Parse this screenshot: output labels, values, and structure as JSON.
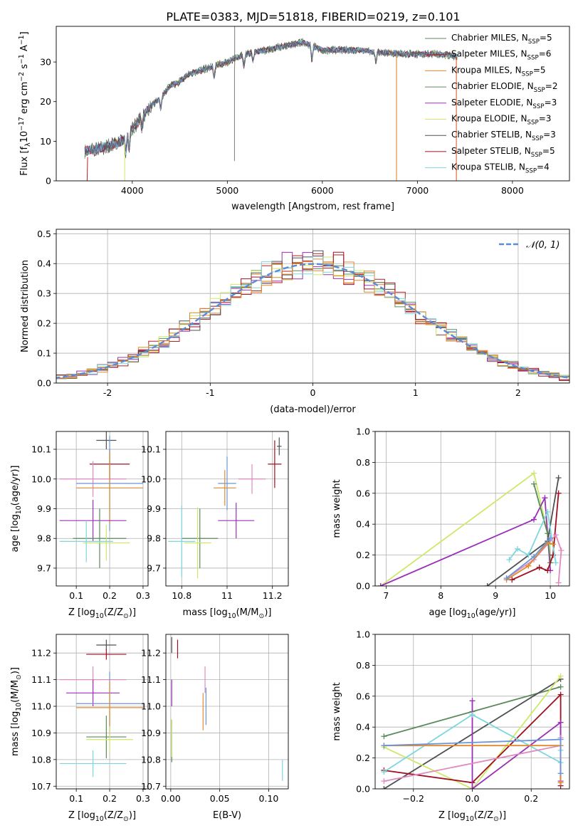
{
  "title": "PLATE=0383, MJD=51818, FIBERID=0219, z=0.101",
  "colors": [
    "#5b5b5b",
    "#b22222",
    "#e08a2c",
    "#5c8a5c",
    "#9b30b8",
    "#cde86a",
    "#505050",
    "#a01020",
    "#7dd6de",
    "#6b95d8",
    "#e08ac0"
  ],
  "chart_data": [
    {
      "type": "line",
      "name": "spectrum",
      "xlabel": "wavelength [Angstrom, rest frame]",
      "ylabel": "Flux [f_λ10^-17 erg cm^-2 s^-1 A^-1]",
      "xlim": [
        3200,
        8600
      ],
      "ylim": [
        0,
        39
      ],
      "xticks": [
        4000,
        5000,
        6000,
        7000,
        8000
      ],
      "yticks": [
        0,
        10,
        20,
        30
      ],
      "legend": "upper right",
      "legend_entries": [
        {
          "label": "Chabrier MILES, N_SSP=5",
          "color": "#5c8a5c"
        },
        {
          "label": "Salpeter MILES, N_SSP=6",
          "color": "#b22222"
        },
        {
          "label": "Kroupa MILES, N_SSP=5",
          "color": "#e08a2c"
        },
        {
          "label": "Chabrier ELODIE, N_SSP=2",
          "color": "#5c8a5c"
        },
        {
          "label": "Salpeter ELODIE, N_SSP=3",
          "color": "#9b30b8"
        },
        {
          "label": "Kroupa ELODIE, N_SSP=3",
          "color": "#cde86a"
        },
        {
          "label": "Chabrier STELIB, N_SSP=3",
          "color": "#505050"
        },
        {
          "label": "Salpeter STELIB, N_SSP=5",
          "color": "#a01020"
        },
        {
          "label": "Kroupa STELIB, N_SSP=4",
          "color": "#7dd6de"
        }
      ],
      "continuum": [
        [
          3500,
          7.5
        ],
        [
          3700,
          8.5
        ],
        [
          3900,
          10
        ],
        [
          4000,
          13
        ],
        [
          4100,
          16
        ],
        [
          4200,
          19
        ],
        [
          4300,
          21
        ],
        [
          4400,
          24
        ],
        [
          4500,
          25
        ],
        [
          4600,
          27
        ],
        [
          4800,
          28.5
        ],
        [
          5000,
          30
        ],
        [
          5200,
          32
        ],
        [
          5400,
          33
        ],
        [
          5600,
          34
        ],
        [
          5800,
          35
        ],
        [
          5900,
          34
        ],
        [
          6000,
          33
        ],
        [
          6200,
          33
        ],
        [
          6400,
          33
        ],
        [
          6600,
          32.5
        ],
        [
          6800,
          32
        ],
        [
          7000,
          32
        ],
        [
          7200,
          32
        ],
        [
          7400,
          31.5
        ]
      ],
      "spikes": [
        [
          5070,
          0
        ],
        [
          5080,
          39
        ],
        [
          3920,
          0
        ],
        [
          6780,
          0
        ],
        [
          7410,
          0
        ]
      ]
    },
    {
      "type": "area",
      "name": "residual-histogram",
      "xlabel": "(data-model)/error",
      "ylabel": "Normed distribution",
      "xlim": [
        -2.5,
        2.5
      ],
      "ylim": [
        0,
        0.515
      ],
      "xticks": [
        -2,
        -1,
        0,
        1,
        2
      ],
      "yticks": [
        0.0,
        0.1,
        0.2,
        0.3,
        0.4,
        0.5
      ],
      "legend": "upper right",
      "legend_label": "N(0,1)",
      "normal_color": "#5b8ad6",
      "bin_width": 0.1
    },
    {
      "type": "scatter",
      "name": "age-vs-Z",
      "xlabel": "Z [log10(Z/Z☉)]",
      "ylabel": "age [log10(age/yr)]",
      "xlim": [
        0.04,
        0.315
      ],
      "ylim": [
        9.64,
        10.16
      ],
      "xticks": [
        0.1,
        0.2,
        0.3
      ],
      "yticks": [
        9.7,
        9.8,
        9.9,
        10.0,
        10.1
      ],
      "points": [
        {
          "x": 0.19,
          "xerr": 0.03,
          "y": 10.13,
          "yerr": 0.03,
          "color": "#505050"
        },
        {
          "x": 0.2,
          "xerr": 0.06,
          "y": 10.05,
          "yerr": 0.05,
          "color": "#a01020"
        },
        {
          "x": 0.15,
          "xerr": 0.1,
          "y": 10.0,
          "yerr": 0.06,
          "color": "#e08ac0"
        },
        {
          "x": 0.2,
          "xerr": 0.1,
          "y": 9.985,
          "yerr": 0.16,
          "color": "#6b95d8"
        },
        {
          "x": 0.2,
          "xerr": 0.1,
          "y": 9.97,
          "yerr": 0.12,
          "color": "#e08a2c"
        },
        {
          "x": 0.15,
          "xerr": 0.1,
          "y": 9.86,
          "yerr": 0.07,
          "color": "#9b30b8"
        },
        {
          "x": 0.17,
          "xerr": 0.08,
          "y": 9.8,
          "yerr": 0.1,
          "color": "#5c8a5c"
        },
        {
          "x": 0.19,
          "xerr": 0.07,
          "y": 9.785,
          "yerr": 0.06,
          "color": "#cde86a"
        },
        {
          "x": 0.13,
          "xerr": 0.08,
          "y": 9.79,
          "yerr": 0.07,
          "color": "#7dd6de"
        }
      ]
    },
    {
      "type": "scatter",
      "name": "age-vs-mass",
      "xlabel": "mass [log10(M/M☉)]",
      "ylabel": "",
      "xlim": [
        10.73,
        11.27
      ],
      "ylim": [
        9.64,
        10.16
      ],
      "xticks": [
        10.8,
        11.0,
        11.2
      ],
      "yticks": [
        9.7,
        9.8,
        9.9,
        10.0,
        10.1
      ],
      "points": [
        {
          "x": 11.23,
          "xerr": 0.01,
          "y": 10.11,
          "yerr": 0.03,
          "color": "#505050"
        },
        {
          "x": 11.21,
          "xerr": 0.03,
          "y": 10.05,
          "yerr": 0.08,
          "color": "#a01020"
        },
        {
          "x": 11.11,
          "xerr": 0.06,
          "y": 10.0,
          "yerr": 0.05,
          "color": "#e08ac0"
        },
        {
          "x": 11.0,
          "xerr": 0.04,
          "y": 9.985,
          "yerr": 0.09,
          "color": "#6b95d8"
        },
        {
          "x": 10.99,
          "xerr": 0.05,
          "y": 9.97,
          "yerr": 0.06,
          "color": "#e08a2c"
        },
        {
          "x": 11.04,
          "xerr": 0.08,
          "y": 9.86,
          "yerr": 0.06,
          "color": "#9b30b8"
        },
        {
          "x": 10.88,
          "xerr": 0.08,
          "y": 9.8,
          "yerr": 0.1,
          "color": "#5c8a5c"
        },
        {
          "x": 10.87,
          "xerr": 0.06,
          "y": 9.785,
          "yerr": 0.12,
          "color": "#cde86a"
        },
        {
          "x": 10.8,
          "xerr": 0.06,
          "y": 9.79,
          "yerr": 0.12,
          "color": "#7dd6de"
        }
      ]
    },
    {
      "type": "line",
      "name": "mass-weight-vs-age",
      "xlabel": "age [log10(age/yr)]",
      "ylabel": "mass weight",
      "xlim": [
        6.8,
        10.35
      ],
      "ylim": [
        0,
        1
      ],
      "xticks": [
        7,
        8,
        9,
        10
      ],
      "yticks": [
        0.0,
        0.2,
        0.4,
        0.6,
        0.8,
        1.0
      ],
      "series": [
        {
          "color": "#cde86a",
          "points": [
            [
              6.9,
              0.0
            ],
            [
              9.7,
              0.73
            ],
            [
              10.0,
              0.27
            ]
          ]
        },
        {
          "color": "#9b30b8",
          "points": [
            [
              6.9,
              0.0
            ],
            [
              9.7,
              0.43
            ],
            [
              9.9,
              0.57
            ],
            [
              10.0,
              0.1
            ]
          ]
        },
        {
          "color": "#5c8a5c",
          "points": [
            [
              9.7,
              0.66
            ],
            [
              9.95,
              0.34
            ],
            [
              10.0,
              0.15
            ]
          ]
        },
        {
          "color": "#505050",
          "points": [
            [
              8.85,
              0.0
            ],
            [
              9.95,
              0.29
            ],
            [
              10.15,
              0.7
            ]
          ]
        },
        {
          "color": "#a01020",
          "points": [
            [
              9.3,
              0.04
            ],
            [
              9.8,
              0.12
            ],
            [
              9.95,
              0.1
            ],
            [
              10.05,
              0.2
            ],
            [
              10.15,
              0.6
            ]
          ]
        },
        {
          "color": "#7dd6de",
          "points": [
            [
              9.25,
              0.17
            ],
            [
              9.4,
              0.24
            ],
            [
              9.6,
              0.2
            ],
            [
              9.95,
              0.48
            ],
            [
              10.1,
              0.15
            ]
          ]
        },
        {
          "color": "#e08ac0",
          "points": [
            [
              9.2,
              0.05
            ],
            [
              9.7,
              0.17
            ],
            [
              10.1,
              0.33
            ],
            [
              10.2,
              0.23
            ],
            [
              10.15,
              0.02
            ]
          ]
        },
        {
          "color": "#e08a2c",
          "points": [
            [
              9.2,
              0.04
            ],
            [
              9.6,
              0.13
            ],
            [
              9.95,
              0.28
            ],
            [
              10.05,
              0.27
            ]
          ]
        },
        {
          "color": "#6b95d8",
          "points": [
            [
              9.2,
              0.05
            ],
            [
              9.7,
              0.19
            ],
            [
              10.0,
              0.31
            ]
          ]
        }
      ]
    },
    {
      "type": "scatter",
      "name": "mass-vs-Z",
      "xlabel": "Z [log10(Z/Z☉)]",
      "ylabel": "mass [log10(M/M☉)]",
      "xlim": [
        0.04,
        0.315
      ],
      "ylim": [
        10.69,
        11.27
      ],
      "xticks": [
        0.1,
        0.2,
        0.3
      ],
      "yticks": [
        10.7,
        10.8,
        10.9,
        11.0,
        11.1,
        11.2
      ],
      "points": [
        {
          "x": 0.19,
          "xerr": 0.03,
          "y": 11.23,
          "yerr": 0.02,
          "color": "#505050"
        },
        {
          "x": 0.19,
          "xerr": 0.06,
          "y": 11.195,
          "yerr": 0.02,
          "color": "#a01020"
        },
        {
          "x": 0.15,
          "xerr": 0.1,
          "y": 11.1,
          "yerr": 0.05,
          "color": "#e08ac0"
        },
        {
          "x": 0.15,
          "xerr": 0.08,
          "y": 11.05,
          "yerr": 0.05,
          "color": "#9b30b8"
        },
        {
          "x": 0.2,
          "xerr": 0.1,
          "y": 11.01,
          "yerr": 0.12,
          "color": "#6b95d8"
        },
        {
          "x": 0.2,
          "xerr": 0.1,
          "y": 10.995,
          "yerr": 0.1,
          "color": "#e08a2c"
        },
        {
          "x": 0.19,
          "xerr": 0.06,
          "y": 10.885,
          "yerr": 0.08,
          "color": "#5c8a5c"
        },
        {
          "x": 0.2,
          "xerr": 0.07,
          "y": 10.875,
          "yerr": 0.05,
          "color": "#cde86a"
        },
        {
          "x": 0.15,
          "xerr": 0.1,
          "y": 10.785,
          "yerr": 0.05,
          "color": "#7dd6de"
        }
      ]
    },
    {
      "type": "scatter",
      "name": "mass-vs-EBV",
      "xlabel": "E(B-V)",
      "ylabel": "",
      "xlim": [
        -0.005,
        0.12
      ],
      "ylim": [
        10.69,
        11.27
      ],
      "xticks": [
        0.0,
        0.05,
        0.1
      ],
      "xtick_labels": [
        "0.00",
        "0.05",
        "0.10"
      ],
      "yticks": [
        10.7,
        10.8,
        10.9,
        11.0,
        11.1,
        11.2
      ],
      "points": [
        {
          "x": 0.001,
          "y": 11.23,
          "yerr": 0.03,
          "color": "#505050"
        },
        {
          "x": 0.007,
          "y": 11.215,
          "yerr": 0.035,
          "color": "#a01020"
        },
        {
          "x": 0.035,
          "y": 11.1,
          "yerr": 0.05,
          "color": "#e08ac0"
        },
        {
          "x": 0.001,
          "y": 11.05,
          "yerr": 0.05,
          "color": "#9b30b8"
        },
        {
          "x": 0.036,
          "y": 11.0,
          "yerr": 0.07,
          "color": "#6b95d8"
        },
        {
          "x": 0.033,
          "y": 10.98,
          "yerr": 0.07,
          "color": "#e08a2c"
        },
        {
          "x": 0.001,
          "y": 10.87,
          "yerr": 0.08,
          "color": "#5c8a5c"
        },
        {
          "x": 0.001,
          "y": 10.88,
          "yerr": 0.07,
          "color": "#cde86a"
        },
        {
          "x": 0.114,
          "y": 10.76,
          "yerr": 0.04,
          "color": "#7dd6de"
        }
      ]
    },
    {
      "type": "line",
      "name": "mass-weight-vs-Z",
      "xlabel": "Z [log10(Z/Z☉)]",
      "ylabel": "mass weight",
      "xlim": [
        -0.33,
        0.33
      ],
      "ylim": [
        0,
        1
      ],
      "xticks": [
        -0.2,
        0.0,
        0.2
      ],
      "xtick_labels": [
        "−0.2",
        "0.0",
        "0.2"
      ],
      "yticks": [
        0.0,
        0.2,
        0.4,
        0.6,
        0.8,
        1.0
      ],
      "series": [
        {
          "color": "#5c8a5c",
          "points": [
            [
              -0.3,
              0.34
            ],
            [
              0.0,
              0.5
            ],
            [
              0.3,
              0.66
            ]
          ]
        },
        {
          "color": "#505050",
          "points": [
            [
              -0.3,
              0.0
            ],
            [
              0.3,
              0.71
            ]
          ]
        },
        {
          "color": "#cde86a",
          "points": [
            [
              -0.3,
              0.27
            ],
            [
              0.0,
              0.0
            ],
            [
              0.3,
              0.73
            ]
          ]
        },
        {
          "color": "#a01020",
          "points": [
            [
              -0.3,
              0.12
            ],
            [
              0.0,
              0.04
            ],
            [
              0.3,
              0.61
            ],
            [
              0.3,
              0.02
            ]
          ]
        },
        {
          "color": "#9b30b8",
          "points": [
            [
              0.0,
              0.57
            ],
            [
              0.0,
              0.0
            ],
            [
              0.3,
              0.43
            ],
            [
              0.3,
              0.05
            ]
          ]
        },
        {
          "color": "#7dd6de",
          "points": [
            [
              -0.3,
              0.11
            ],
            [
              0.0,
              0.48
            ],
            [
              0.3,
              0.17
            ],
            [
              0.3,
              0.25
            ]
          ]
        },
        {
          "color": "#e08ac0",
          "points": [
            [
              -0.3,
              0.05
            ],
            [
              0.3,
              0.28
            ],
            [
              0.3,
              0.33
            ]
          ]
        },
        {
          "color": "#e08a2c",
          "points": [
            [
              -0.3,
              0.28
            ],
            [
              0.3,
              0.28
            ],
            [
              0.3,
              0.04
            ]
          ]
        },
        {
          "color": "#6b95d8",
          "points": [
            [
              -0.3,
              0.28
            ],
            [
              0.3,
              0.32
            ],
            [
              0.3,
              0.1
            ]
          ]
        }
      ]
    }
  ]
}
